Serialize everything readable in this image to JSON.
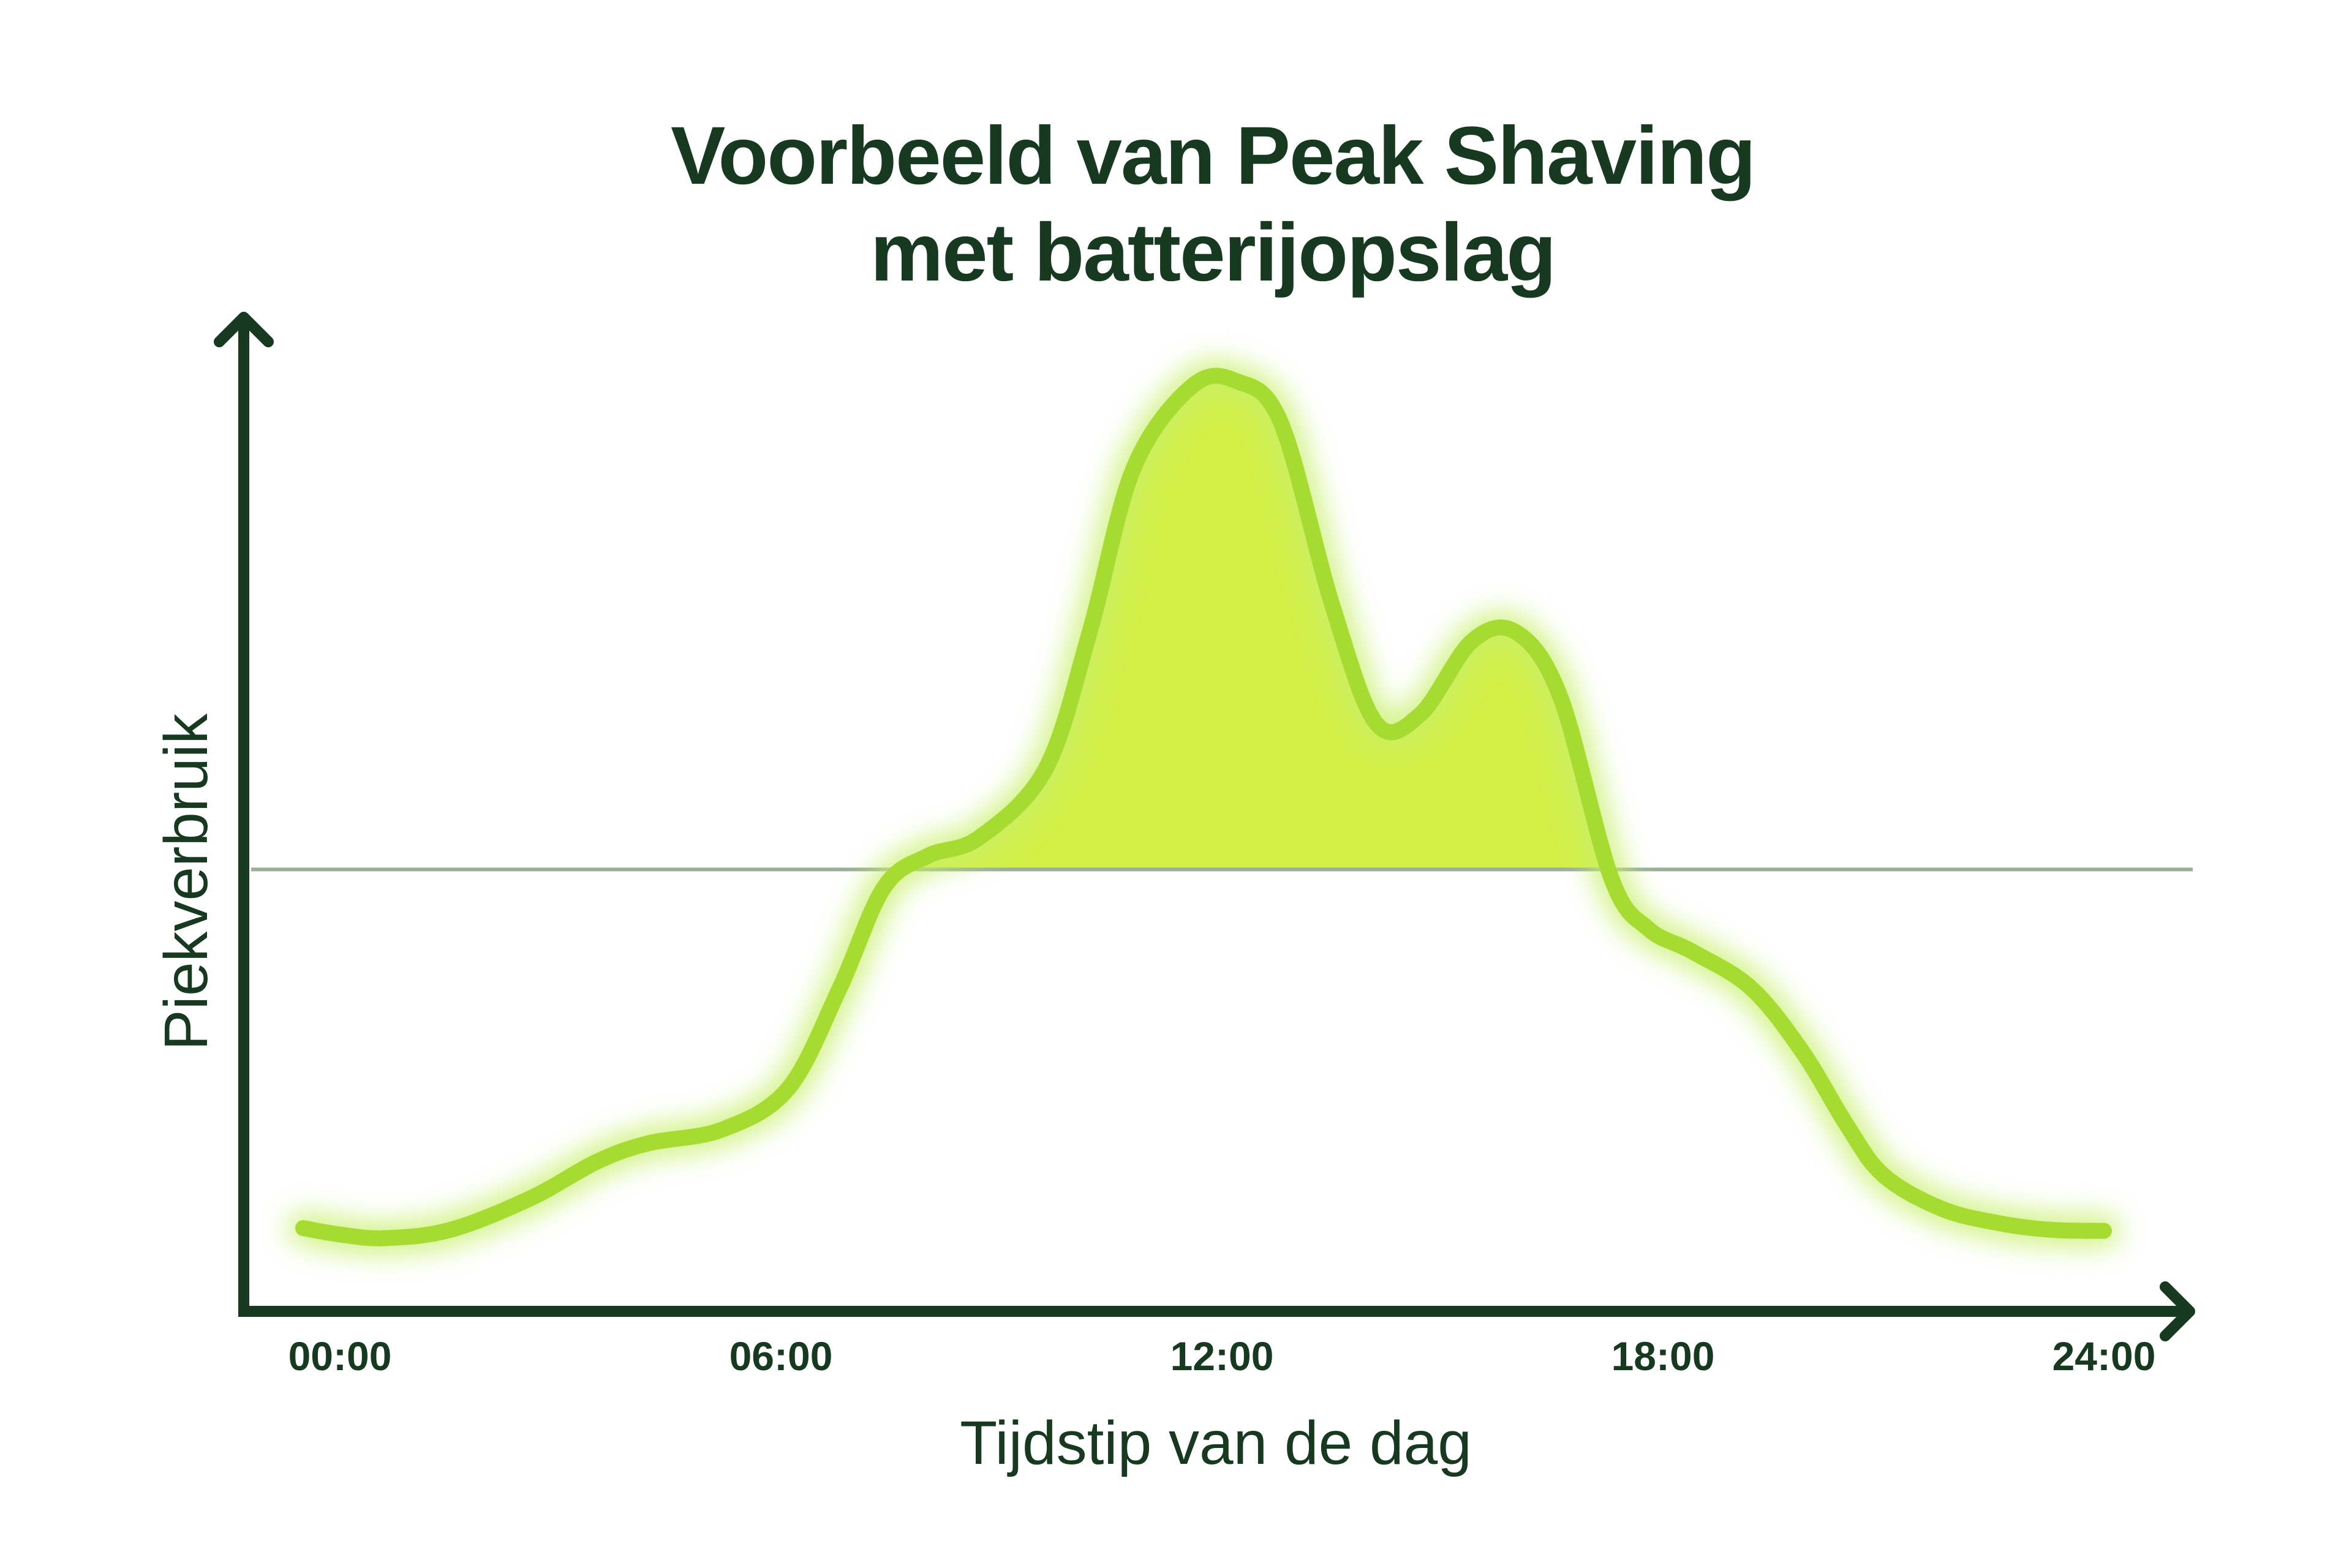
{
  "title_lines": [
    "Voorbeeld van Peak Shaving",
    "met batterijopslag"
  ],
  "colors": {
    "text": "#17391f",
    "axis": "#17391f",
    "curve": "#a6dc32",
    "glow": "#c8f06a",
    "fill": "#d3ef48",
    "threshold": "#9aae9c"
  },
  "chart_data": {
    "type": "area",
    "title": "Voorbeeld van Peak Shaving met batterijopslag",
    "xlabel": "Tijdstip van de dag",
    "ylabel": "Piekverbruik",
    "x_ticks": [
      "00:00",
      "06:00",
      "12:00",
      "18:00",
      "24:00"
    ],
    "x_range": [
      0,
      24
    ],
    "y_range": [
      0,
      100
    ],
    "grid": false,
    "legend": "none",
    "peak_threshold": 45,
    "series": [
      {
        "x": [
          -0.5,
          0,
          0.6,
          1.5,
          2.6,
          3.5,
          4.2,
          5.2,
          6.1,
          6.8,
          7.4,
          8.0,
          8.7,
          9.6,
          10.2,
          10.8,
          11.6,
          12.2,
          12.8,
          13.5,
          14.1,
          14.7,
          15.4,
          16.0,
          16.6,
          17.3,
          17.8,
          18.4,
          19.2,
          19.9,
          20.5,
          21.0,
          21.8,
          22.6,
          23.3,
          24.0
        ],
        "y": [
          5.7,
          5.0,
          4.6,
          5.5,
          9.0,
          13.0,
          15.0,
          16.5,
          21.0,
          32.0,
          43.0,
          46.5,
          48.5,
          56.0,
          71.0,
          89.0,
          98.0,
          98.5,
          94.0,
          74.0,
          61.0,
          62.0,
          70.0,
          71.0,
          64.0,
          44.0,
          38.5,
          36.0,
          32.0,
          25.0,
          17.0,
          11.5,
          7.8,
          6.2,
          5.5,
          5.4
        ]
      }
    ]
  }
}
